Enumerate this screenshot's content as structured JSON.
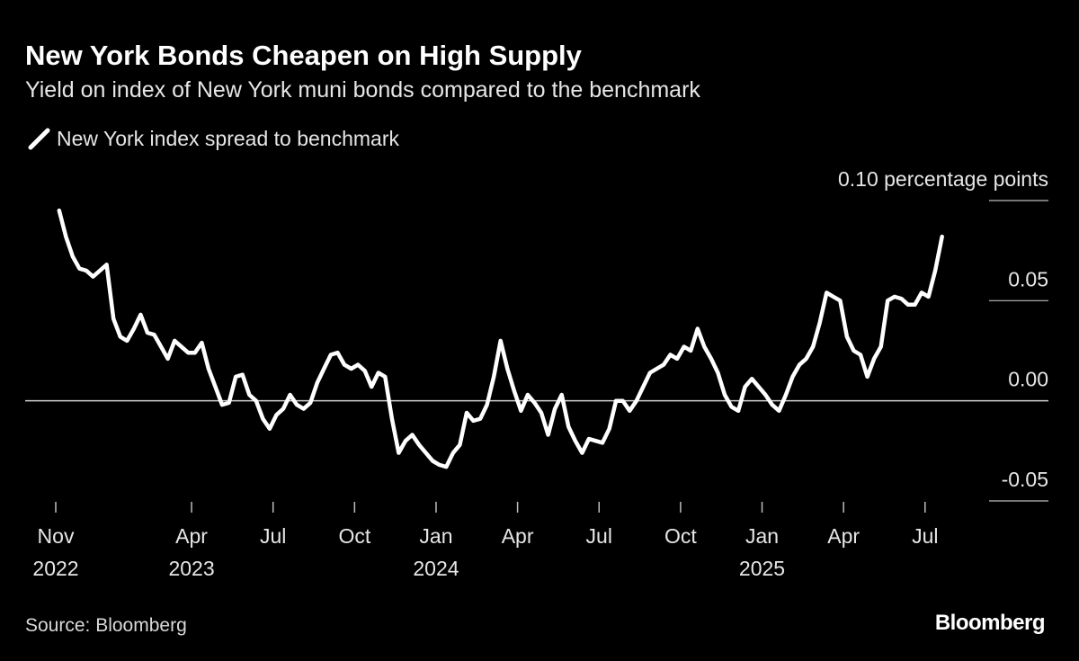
{
  "chart_data": {
    "type": "line",
    "title": "New York Bonds Cheapen on High Supply",
    "subtitle": "Yield on index of New York muni bonds compared to the benchmark",
    "source": "Source: Bloomberg",
    "brand": "Bloomberg",
    "legend": "top-left",
    "xlim": [
      "2022-11",
      "2025-08"
    ],
    "xticks": [
      {
        "value": "2022-11",
        "label": "Nov 2022"
      },
      {
        "value": "2023-04",
        "label": "Apr 2023"
      },
      {
        "value": "2023-07",
        "label": "Jul"
      },
      {
        "value": "2023-10",
        "label": "Oct"
      },
      {
        "value": "2024-01",
        "label": "Jan 2024"
      },
      {
        "value": "2024-04",
        "label": "Apr"
      },
      {
        "value": "2024-07",
        "label": "Jul"
      },
      {
        "value": "2024-10",
        "label": "Oct"
      },
      {
        "value": "2025-01",
        "label": "Jan 2025"
      },
      {
        "value": "2025-04",
        "label": "Apr"
      },
      {
        "value": "2025-07",
        "label": "Jul"
      }
    ],
    "ylim": [
      -0.05,
      0.1
    ],
    "yticks": [
      {
        "value": -0.05,
        "label": "-0.05"
      },
      {
        "value": 0,
        "label": "0.00"
      },
      {
        "value": 0.05,
        "label": "0.05"
      },
      {
        "value": 0.1,
        "label": "0.10 percentage points"
      }
    ],
    "x": [
      "2022-11",
      "2022-11",
      "2022-11",
      "2022-11",
      "2022-12",
      "2022-12",
      "2022-12",
      "2022-12",
      "2023-01",
      "2023-01",
      "2023-01",
      "2023-01",
      "2023-02",
      "2023-02",
      "2023-02",
      "2023-02",
      "2023-03",
      "2023-03",
      "2023-03",
      "2023-03",
      "2023-04",
      "2023-04",
      "2023-04",
      "2023-04",
      "2023-05",
      "2023-05",
      "2023-05",
      "2023-05",
      "2023-06",
      "2023-06",
      "2023-06",
      "2023-06",
      "2023-07",
      "2023-07",
      "2023-07",
      "2023-07",
      "2023-08",
      "2023-08",
      "2023-08",
      "2023-08",
      "2023-09",
      "2023-09",
      "2023-09",
      "2023-09",
      "2023-10",
      "2023-10",
      "2023-10",
      "2023-10",
      "2023-11",
      "2023-11",
      "2023-11",
      "2023-11",
      "2023-12",
      "2023-12",
      "2023-12",
      "2023-12",
      "2024-01",
      "2024-01",
      "2024-01",
      "2024-01",
      "2024-02",
      "2024-02",
      "2024-02",
      "2024-02",
      "2024-03",
      "2024-03",
      "2024-03",
      "2024-03",
      "2024-04",
      "2024-04",
      "2024-04",
      "2024-04",
      "2024-05",
      "2024-05",
      "2024-05",
      "2024-05",
      "2024-06",
      "2024-06",
      "2024-06",
      "2024-06",
      "2024-07",
      "2024-07",
      "2024-07",
      "2024-07",
      "2024-08",
      "2024-08",
      "2024-08",
      "2024-08",
      "2024-09",
      "2024-09",
      "2024-09",
      "2024-09",
      "2024-10",
      "2024-10",
      "2024-10",
      "2024-10",
      "2024-11",
      "2024-11",
      "2024-11",
      "2024-11",
      "2024-12",
      "2024-12",
      "2024-12",
      "2024-12",
      "2025-01",
      "2025-01",
      "2025-01",
      "2025-01",
      "2025-02",
      "2025-02",
      "2025-02",
      "2025-02",
      "2025-03",
      "2025-03",
      "2025-03",
      "2025-03",
      "2025-04",
      "2025-04",
      "2025-04",
      "2025-04",
      "2025-05",
      "2025-05",
      "2025-05",
      "2025-05",
      "2025-06",
      "2025-06",
      "2025-06",
      "2025-06",
      "2025-07",
      "2025-07",
      "2025-07"
    ],
    "series": [
      {
        "name": "New York index spread to benchmark",
        "color": "#ffffff",
        "values": [
          0.095,
          0.082,
          0.072,
          0.066,
          0.065,
          0.062,
          0.065,
          0.068,
          0.041,
          0.032,
          0.03,
          0.036,
          0.043,
          0.034,
          0.033,
          0.027,
          0.021,
          0.03,
          0.027,
          0.024,
          0.024,
          0.029,
          0.016,
          0.007,
          -0.002,
          -0.001,
          0.012,
          0.013,
          0.003,
          0.0,
          -0.009,
          -0.014,
          -0.007,
          -0.004,
          0.003,
          -0.002,
          -0.004,
          -0.001,
          0.009,
          0.016,
          0.023,
          0.024,
          0.018,
          0.016,
          0.018,
          0.015,
          0.007,
          0.014,
          0.012,
          -0.009,
          -0.026,
          -0.02,
          -0.017,
          -0.022,
          -0.026,
          -0.03,
          -0.032,
          -0.033,
          -0.026,
          -0.022,
          -0.006,
          -0.01,
          -0.009,
          -0.002,
          0.012,
          0.03,
          0.016,
          0.005,
          -0.005,
          0.003,
          -0.001,
          -0.006,
          -0.017,
          -0.004,
          0.003,
          -0.013,
          -0.02,
          -0.026,
          -0.019,
          -0.02,
          -0.021,
          -0.014,
          0.0,
          0.0,
          -0.005,
          0.0,
          0.007,
          0.014,
          0.016,
          0.018,
          0.023,
          0.021,
          0.027,
          0.025,
          0.036,
          0.027,
          0.021,
          0.014,
          0.003,
          -0.003,
          -0.005,
          0.007,
          0.011,
          0.007,
          0.003,
          -0.002,
          -0.005,
          0.003,
          0.012,
          0.018,
          0.021,
          0.027,
          0.039,
          0.054,
          0.052,
          0.05,
          0.032,
          0.025,
          0.023,
          0.012,
          0.021,
          0.027,
          0.05,
          0.052,
          0.051,
          0.048,
          0.048,
          0.054,
          0.052,
          0.065,
          0.082
        ]
      }
    ]
  }
}
